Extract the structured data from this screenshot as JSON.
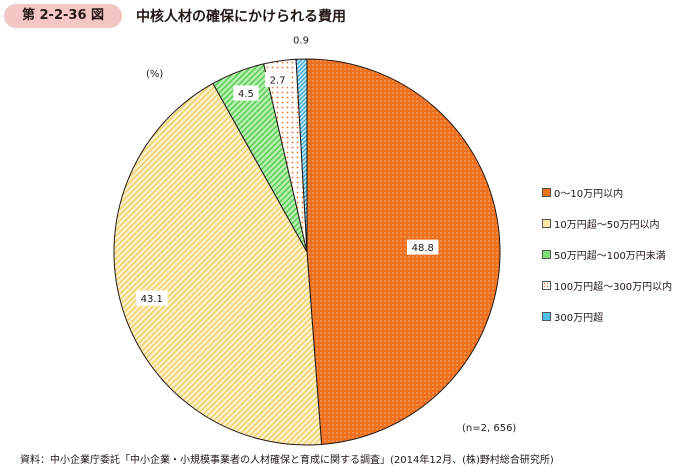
{
  "header": {
    "figure_number": "第 2-2-36 図",
    "title": "中核人材の確保にかけられる費用"
  },
  "unit_label": "(%)",
  "sample_label": "(n=2, 656)",
  "source_note": "資料：中小企業庁委託「中小企業・小規模事業者の人材確保と育成に関する調査」(2014年12月、(株)野村総合研究所)",
  "chart_data": {
    "type": "pie",
    "title": "中核人材の確保にかけられる費用",
    "unit": "%",
    "n": 2656,
    "start": "12 o'clock, clockwise",
    "legend_position": "right",
    "slices": [
      {
        "label": "0～10万円以内",
        "value": 48.8,
        "value_label": "48.8",
        "color": "#ee6f1d",
        "pattern": "dots"
      },
      {
        "label": "10万円超～50万円以内",
        "value": 43.1,
        "value_label": "43.1",
        "color": "#fbe7a6",
        "pattern": "diagonal"
      },
      {
        "label": "50万円超～100万円未満",
        "value": 4.5,
        "value_label": "4.5",
        "color": "#7fe07a",
        "pattern": "diagonal"
      },
      {
        "label": "100万円超～300万円以内",
        "value": 2.7,
        "value_label": "2.7",
        "color": "#ffffff",
        "pattern": "orange-dots"
      },
      {
        "label": "300万円超",
        "value": 0.9,
        "value_label": "0.9",
        "color": "#4fc3e8",
        "pattern": "diagonal"
      }
    ]
  }
}
